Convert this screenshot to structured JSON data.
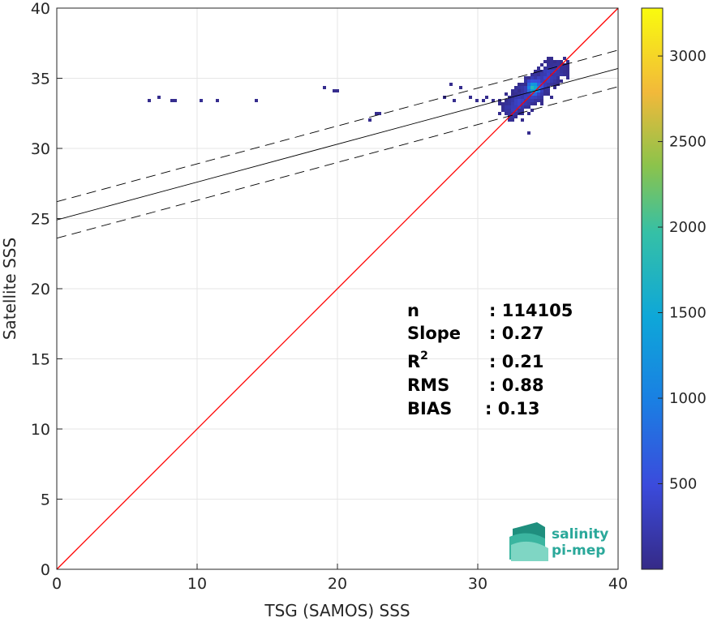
{
  "chart_data": {
    "type": "heatmap",
    "xlabel": "TSG (SAMOS) SSS",
    "ylabel": "Satellite SSS",
    "xlim": [
      0,
      40
    ],
    "ylim": [
      0,
      40
    ],
    "xticks": [
      0,
      10,
      20,
      30,
      40
    ],
    "yticks": [
      0,
      5,
      10,
      15,
      20,
      25,
      30,
      35,
      40
    ],
    "grid": true,
    "identity_line": {
      "color": "#ff0000",
      "from": [
        0,
        0
      ],
      "to": [
        40,
        40
      ]
    },
    "fit_line": {
      "slope": 0.27,
      "intercept": 24.9,
      "color": "#000000"
    },
    "fit_bounds": [
      {
        "slope": 0.27,
        "intercept": 26.2,
        "style": "dashed"
      },
      {
        "slope": 0.27,
        "intercept": 23.6,
        "style": "dashed"
      }
    ],
    "colorbar": {
      "range": [
        0,
        3280
      ],
      "ticks": [
        500,
        1000,
        1500,
        2000,
        2500,
        3000
      ],
      "colormap": "parula"
    },
    "density_clusters": [
      {
        "x": 33.8,
        "y": 34.2,
        "count": 3280
      },
      {
        "x": 34.4,
        "y": 34.8,
        "count": 1500
      },
      {
        "x": 33.4,
        "y": 33.6,
        "count": 500
      },
      {
        "x": 34.8,
        "y": 35.2,
        "count": 400
      },
      {
        "x": 32.9,
        "y": 33.2,
        "count": 200
      }
    ],
    "stats": [
      {
        "label": "n",
        "sup": "",
        "value": ": 114105"
      },
      {
        "label": "Slope",
        "sup": "",
        "value": ": 0.27"
      },
      {
        "label": "R",
        "sup": "2",
        "value": ": 0.21"
      },
      {
        "label": "RMS",
        "sup": "",
        "value": ": 0.88"
      },
      {
        "label": "BIAS",
        "sup": "",
        "value": ": 0.13"
      }
    ]
  },
  "logo": {
    "line1": "salinity",
    "line2": "pi-mep"
  }
}
